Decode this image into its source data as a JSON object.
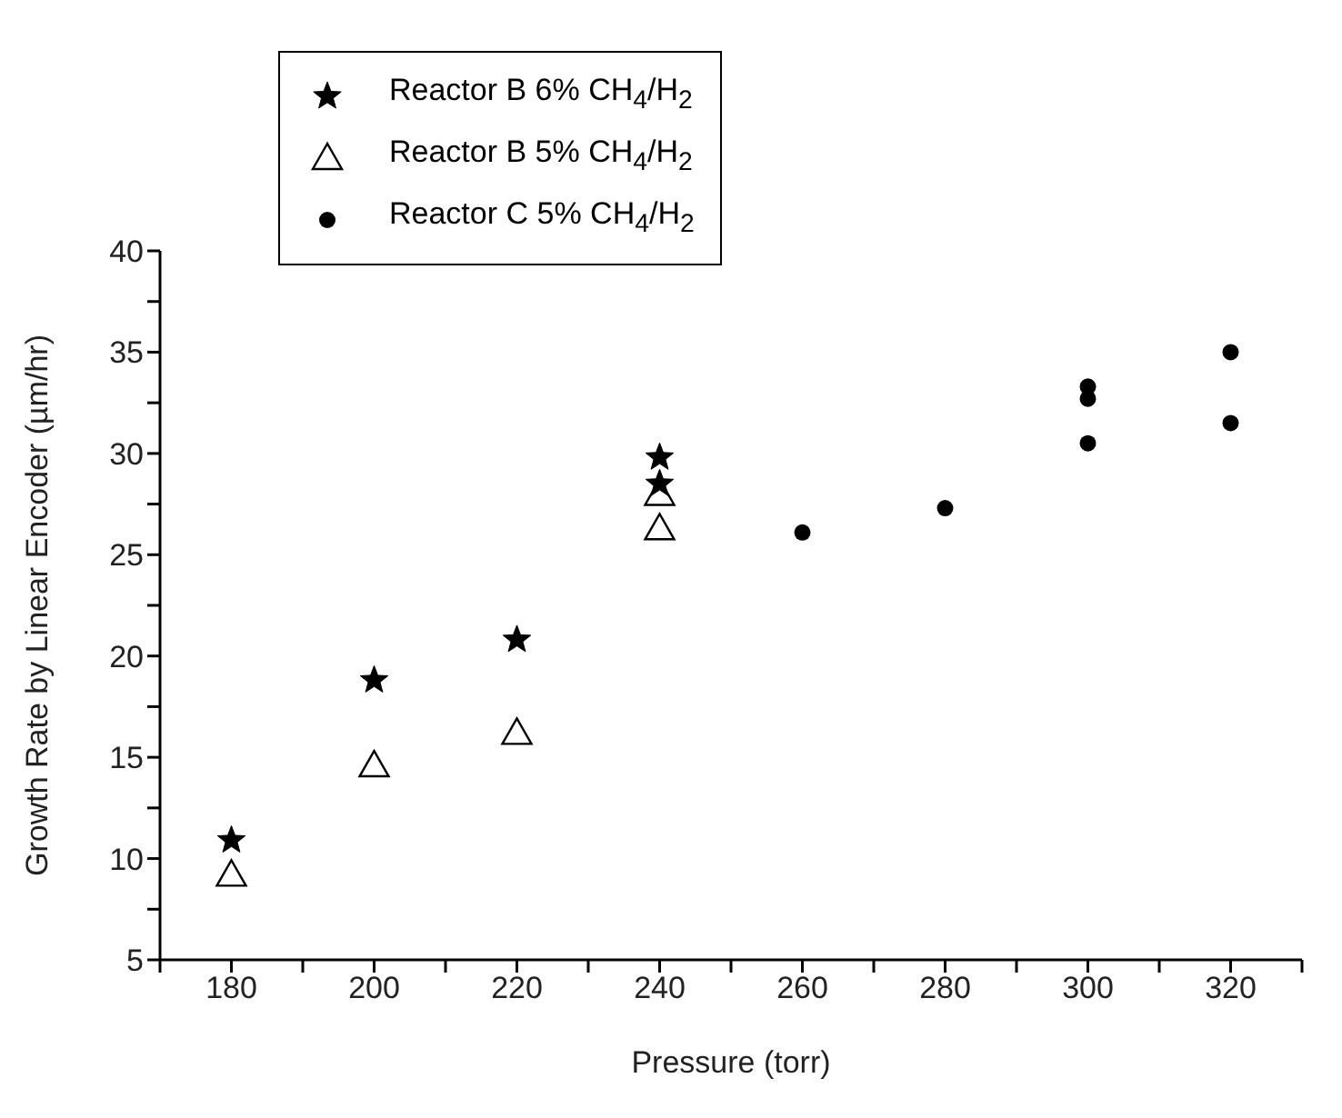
{
  "chart_data": {
    "type": "scatter",
    "xlabel": "Pressure (torr)",
    "ylabel": "Growth Rate by Linear Encoder (µm/hr)",
    "xlim": [
      170,
      330
    ],
    "xticks": [
      {
        "value": 170,
        "label": null
      },
      180,
      {
        "value": 190,
        "label": null
      },
      200,
      {
        "value": 210,
        "label": null
      },
      220,
      {
        "value": 230,
        "label": null
      },
      240,
      {
        "value": 250,
        "label": null
      },
      260,
      {
        "value": 270,
        "label": null
      },
      280,
      {
        "value": 290,
        "label": null
      },
      300,
      {
        "value": 310,
        "label": null
      },
      320,
      {
        "value": 330,
        "label": null
      }
    ],
    "ylim": [
      5,
      40
    ],
    "yticks": [
      5,
      {
        "value": 7.5,
        "label": null
      },
      10,
      {
        "value": 12.5,
        "label": null
      },
      15,
      {
        "value": 17.5,
        "label": null
      },
      20,
      {
        "value": 22.5,
        "label": null
      },
      25,
      {
        "value": 27.5,
        "label": null
      },
      30,
      {
        "value": 32.5,
        "label": null
      },
      35,
      {
        "value": 37.5,
        "label": null
      },
      40
    ],
    "legend": "top left",
    "series": [
      {
        "name": "Reactor B 6% CH$_{4}$/H$_{2}$",
        "color": "#000000",
        "marker": "star",
        "x": [
          180,
          200,
          220,
          240,
          240
        ],
        "values": [
          10.9,
          18.8,
          20.8,
          29.8,
          28.5
        ]
      },
      {
        "name": "Reactor B 5% CH$_{4}$/H$_{2}$",
        "color": "#000000",
        "marker": "triangle",
        "x": [
          180,
          200,
          220,
          240,
          240
        ],
        "values": [
          9.2,
          14.6,
          16.2,
          28.0,
          26.3
        ]
      },
      {
        "name": "Reactor C 5% CH$_{4}$/H$_{2}$",
        "color": "#000000",
        "marker": "circle",
        "x": [
          260,
          280,
          300,
          300,
          300,
          320,
          320
        ],
        "values": [
          26.1,
          27.3,
          33.3,
          32.7,
          30.5,
          35.0,
          31.5
        ]
      }
    ]
  }
}
